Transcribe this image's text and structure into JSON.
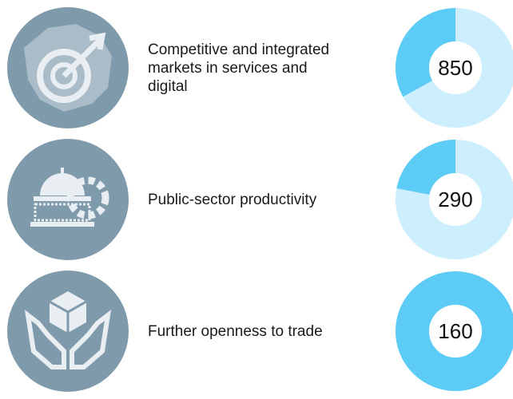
{
  "items": [
    {
      "label_lines": [
        "Competitive and integrated",
        "markets in services and",
        "digital"
      ],
      "value": 850,
      "share": 33
    },
    {
      "label_lines": [
        "Public-sector productivity"
      ],
      "value": 290,
      "share": 22
    },
    {
      "label_lines": [
        "Further openness to trade"
      ],
      "value": 160,
      "share": 100
    }
  ]
}
